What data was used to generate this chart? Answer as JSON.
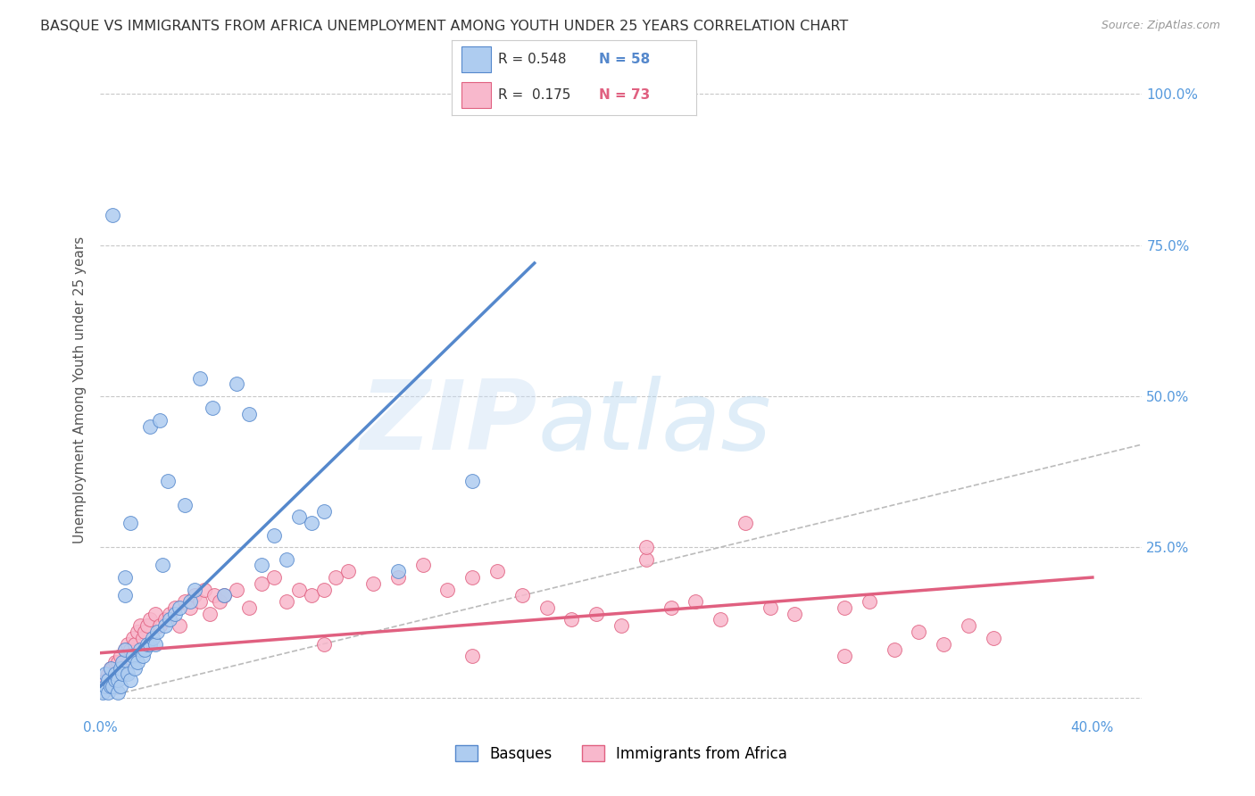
{
  "title": "BASQUE VS IMMIGRANTS FROM AFRICA UNEMPLOYMENT AMONG YOUTH UNDER 25 YEARS CORRELATION CHART",
  "source": "Source: ZipAtlas.com",
  "ylabel": "Unemployment Among Youth under 25 years",
  "xlim": [
    0.0,
    0.42
  ],
  "ylim": [
    -0.03,
    1.05
  ],
  "plot_xlim": [
    0.0,
    0.4
  ],
  "plot_ylim": [
    0.0,
    1.0
  ],
  "xticks": [
    0.0,
    0.05,
    0.1,
    0.15,
    0.2,
    0.25,
    0.3,
    0.35,
    0.4
  ],
  "yticks": [
    0.0,
    0.25,
    0.5,
    0.75,
    1.0
  ],
  "xticklabels": [
    "0.0%",
    "",
    "",
    "",
    "",
    "",
    "",
    "",
    "40.0%"
  ],
  "yticklabels_right": [
    "",
    "25.0%",
    "50.0%",
    "75.0%",
    "100.0%"
  ],
  "watermark_text": "ZIPatlas",
  "background_color": "#ffffff",
  "grid_color": "#c8c8c8",
  "title_color": "#333333",
  "source_color": "#999999",
  "ylabel_color": "#555555",
  "axis_tick_color": "#5599dd",
  "ref_line_color": "#bbbbbb",
  "series": [
    {
      "name": "Basques",
      "R": 0.548,
      "N": 58,
      "face_color": "#aeccf0",
      "edge_color": "#5588cc",
      "x": [
        0.001,
        0.002,
        0.002,
        0.003,
        0.003,
        0.004,
        0.004,
        0.005,
        0.005,
        0.006,
        0.006,
        0.007,
        0.007,
        0.008,
        0.008,
        0.009,
        0.009,
        0.01,
        0.01,
        0.01,
        0.011,
        0.012,
        0.012,
        0.013,
        0.014,
        0.015,
        0.016,
        0.017,
        0.018,
        0.019,
        0.02,
        0.02,
        0.021,
        0.022,
        0.023,
        0.024,
        0.025,
        0.026,
        0.027,
        0.028,
        0.03,
        0.032,
        0.034,
        0.036,
        0.038,
        0.04,
        0.045,
        0.05,
        0.055,
        0.06,
        0.065,
        0.07,
        0.075,
        0.08,
        0.085,
        0.09,
        0.12,
        0.15
      ],
      "y": [
        0.01,
        0.02,
        0.04,
        0.01,
        0.03,
        0.02,
        0.05,
        0.02,
        0.8,
        0.03,
        0.04,
        0.01,
        0.03,
        0.05,
        0.02,
        0.06,
        0.04,
        0.08,
        0.17,
        0.2,
        0.04,
        0.03,
        0.29,
        0.07,
        0.05,
        0.06,
        0.08,
        0.07,
        0.08,
        0.09,
        0.09,
        0.45,
        0.1,
        0.09,
        0.11,
        0.46,
        0.22,
        0.12,
        0.36,
        0.13,
        0.14,
        0.15,
        0.32,
        0.16,
        0.18,
        0.53,
        0.48,
        0.17,
        0.52,
        0.47,
        0.22,
        0.27,
        0.23,
        0.3,
        0.29,
        0.31,
        0.21,
        0.36
      ],
      "trend_x": [
        0.0,
        0.175
      ],
      "trend_y": [
        0.02,
        0.72
      ]
    },
    {
      "name": "Immigrants from Africa",
      "R": 0.175,
      "N": 73,
      "face_color": "#f8b8cc",
      "edge_color": "#e06080",
      "x": [
        0.002,
        0.003,
        0.004,
        0.005,
        0.006,
        0.007,
        0.008,
        0.009,
        0.01,
        0.011,
        0.012,
        0.013,
        0.014,
        0.015,
        0.016,
        0.017,
        0.018,
        0.019,
        0.02,
        0.022,
        0.024,
        0.026,
        0.028,
        0.03,
        0.032,
        0.034,
        0.036,
        0.038,
        0.04,
        0.042,
        0.044,
        0.046,
        0.048,
        0.05,
        0.055,
        0.06,
        0.065,
        0.07,
        0.075,
        0.08,
        0.085,
        0.09,
        0.095,
        0.1,
        0.11,
        0.12,
        0.13,
        0.14,
        0.15,
        0.16,
        0.17,
        0.18,
        0.19,
        0.2,
        0.21,
        0.22,
        0.23,
        0.24,
        0.25,
        0.26,
        0.27,
        0.28,
        0.3,
        0.31,
        0.32,
        0.33,
        0.34,
        0.35,
        0.36,
        0.3,
        0.22,
        0.15,
        0.09
      ],
      "y": [
        0.03,
        0.04,
        0.05,
        0.05,
        0.06,
        0.06,
        0.07,
        0.05,
        0.08,
        0.09,
        0.08,
        0.1,
        0.09,
        0.11,
        0.12,
        0.1,
        0.11,
        0.12,
        0.13,
        0.14,
        0.12,
        0.13,
        0.14,
        0.15,
        0.12,
        0.16,
        0.15,
        0.17,
        0.16,
        0.18,
        0.14,
        0.17,
        0.16,
        0.17,
        0.18,
        0.15,
        0.19,
        0.2,
        0.16,
        0.18,
        0.17,
        0.18,
        0.2,
        0.21,
        0.19,
        0.2,
        0.22,
        0.18,
        0.2,
        0.21,
        0.17,
        0.15,
        0.13,
        0.14,
        0.12,
        0.23,
        0.15,
        0.16,
        0.13,
        0.29,
        0.15,
        0.14,
        0.15,
        0.16,
        0.08,
        0.11,
        0.09,
        0.12,
        0.1,
        0.07,
        0.25,
        0.07,
        0.09
      ],
      "trend_x": [
        0.0,
        0.4
      ],
      "trend_y": [
        0.075,
        0.2
      ]
    }
  ],
  "ref_line_x": [
    0.0,
    0.42
  ],
  "ref_line_y": [
    0.0,
    0.42
  ]
}
